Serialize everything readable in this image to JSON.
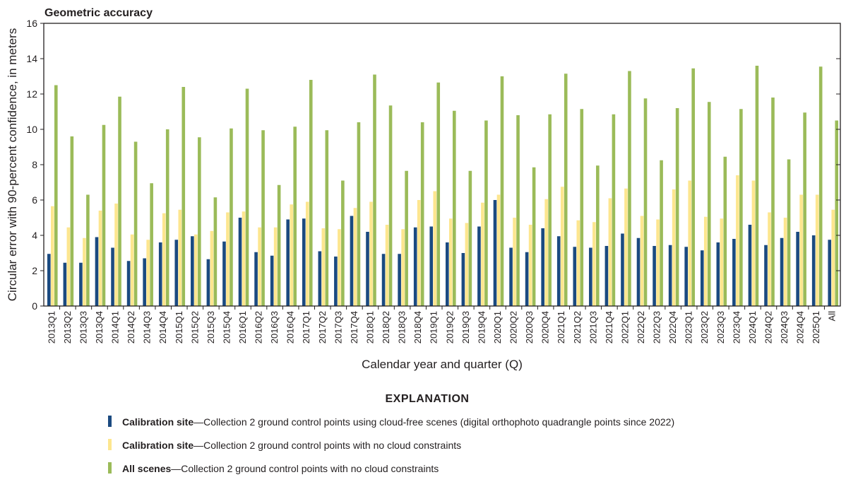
{
  "chart_data": {
    "type": "bar",
    "title": "Geometric accuracy",
    "xlabel": "Calendar year and quarter (Q)",
    "ylabel": "Circular error with 90-percent confidence, in meters",
    "ylim": [
      0,
      16
    ],
    "yticks": [
      "0",
      "2",
      "4",
      "6",
      "8",
      "10",
      "12",
      "14",
      "16"
    ],
    "grid": false,
    "legend_title": "EXPLANATION",
    "legend_position": "bottom",
    "categories": [
      "2013Q1",
      "2013Q2",
      "2013Q3",
      "2013Q4",
      "2014Q1",
      "2014Q2",
      "2014Q3",
      "2014Q4",
      "2015Q1",
      "2015Q2",
      "2015Q3",
      "2015Q4",
      "2016Q1",
      "2016Q2",
      "2016Q3",
      "2016Q4",
      "2017Q1",
      "2017Q2",
      "2017Q3",
      "2017Q4",
      "2018Q1",
      "2018Q2",
      "2018Q3",
      "2018Q4",
      "2019Q1",
      "2019Q2",
      "2019Q3",
      "2019Q4",
      "2020Q1",
      "2020Q2",
      "2020Q3",
      "2020Q4",
      "2021Q1",
      "2021Q2",
      "2021Q3",
      "2021Q4",
      "2022Q1",
      "2022Q2",
      "2022Q3",
      "2022Q4",
      "2023Q1",
      "2023Q2",
      "2023Q3",
      "2023Q4",
      "2024Q1",
      "2024Q2",
      "2024Q3",
      "2024Q4",
      "2025Q1",
      "All"
    ],
    "series": [
      {
        "name_bold": "Calibration site",
        "name_rest": "—Collection 2 ground control points using cloud-free scenes (digital orthophoto quadrangle points since 2022)",
        "color": "#1b4a80",
        "values": [
          2.95,
          2.45,
          2.45,
          3.9,
          3.3,
          2.55,
          2.7,
          3.6,
          3.75,
          3.95,
          2.65,
          3.65,
          5.0,
          3.05,
          2.85,
          4.9,
          4.95,
          3.1,
          2.8,
          5.1,
          4.2,
          2.95,
          2.95,
          4.45,
          4.5,
          3.6,
          3.0,
          4.5,
          6.0,
          3.3,
          3.05,
          4.4,
          3.95,
          3.35,
          3.3,
          3.4,
          4.1,
          3.85,
          3.4,
          3.45,
          3.35,
          3.15,
          3.6,
          3.8,
          4.6,
          3.45,
          3.85,
          4.2,
          4.0,
          3.75
        ]
      },
      {
        "name_bold": "Calibration site",
        "name_rest": "—Collection 2 ground control points with no cloud constraints",
        "color": "#fde68f",
        "values": [
          5.65,
          4.45,
          3.85,
          5.4,
          5.8,
          4.05,
          3.75,
          5.25,
          5.45,
          4.05,
          4.25,
          5.3,
          5.35,
          4.45,
          4.45,
          5.75,
          5.9,
          4.4,
          4.35,
          5.55,
          5.9,
          4.6,
          4.35,
          6.0,
          6.5,
          4.95,
          4.7,
          5.85,
          6.3,
          5.0,
          4.6,
          6.05,
          6.75,
          4.85,
          4.75,
          6.1,
          6.65,
          5.1,
          4.9,
          6.6,
          7.1,
          5.05,
          4.95,
          7.4,
          7.1,
          5.3,
          5.0,
          6.3,
          6.3,
          5.45
        ]
      },
      {
        "name_bold": "All scenes",
        "name_rest": "—Collection 2 ground control points with no cloud constraints",
        "color": "#9bbb59",
        "values": [
          12.5,
          9.6,
          6.3,
          10.25,
          11.85,
          9.3,
          6.95,
          10.0,
          12.4,
          9.55,
          6.15,
          10.05,
          12.3,
          9.95,
          6.85,
          10.15,
          12.8,
          9.95,
          7.1,
          10.4,
          13.1,
          11.35,
          7.65,
          10.4,
          12.65,
          11.05,
          7.65,
          10.5,
          13.0,
          10.8,
          7.85,
          10.85,
          13.15,
          11.15,
          7.95,
          10.85,
          13.3,
          11.75,
          8.25,
          11.2,
          13.45,
          11.55,
          8.45,
          11.15,
          13.6,
          11.8,
          8.3,
          10.95,
          13.55,
          10.5
        ]
      }
    ]
  }
}
